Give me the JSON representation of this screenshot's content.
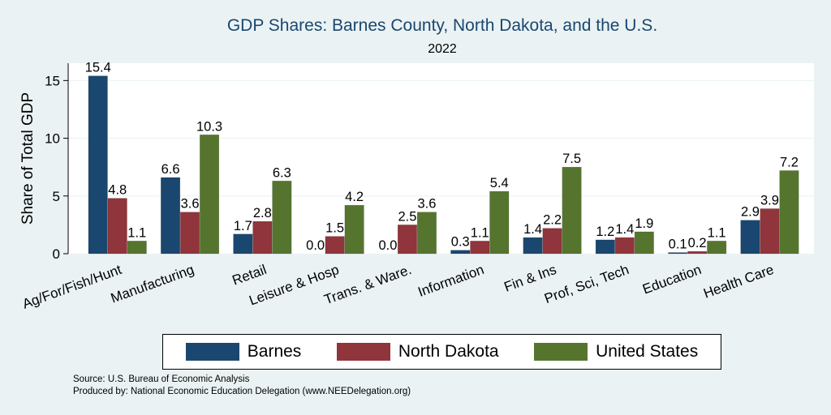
{
  "title": "GDP Shares: Barnes County, North Dakota, and the U.S.",
  "subtitle": "2022",
  "source": "Source: U.S. Bureau of Economic Analysis",
  "produced_by": "Produced by: National Economic Education Delegation (www.NEEDelegation.org)",
  "colors": {
    "barnes": "#1a476f",
    "north_dakota": "#90353b",
    "united_states": "#55752f"
  },
  "chart_data": {
    "type": "bar",
    "title": "GDP Shares: Barnes County, North Dakota, and the U.S.",
    "subtitle": "2022",
    "ylabel": "Share of Total GDP",
    "xlabel": "",
    "ylim": [
      0,
      16.5
    ],
    "yticks": [
      0,
      5,
      10,
      15
    ],
    "grid": true,
    "legend_position": "bottom",
    "categories": [
      "Ag/For/Fish/Hunt",
      "Manufacturing",
      "Retail",
      "Leisure & Hosp",
      "Trans. & Ware.",
      "Information",
      "Fin & Ins",
      "Prof, Sci, Tech",
      "Education",
      "Health Care"
    ],
    "series": [
      {
        "name": "Barnes",
        "values": [
          15.4,
          6.6,
          1.7,
          0.0,
          0.0,
          0.3,
          1.4,
          1.2,
          0.1,
          2.9
        ],
        "labels": [
          "15.4",
          "6.6",
          "1.7",
          "0.0",
          "0.0",
          "0.3",
          "1.4",
          "1.2",
          "0.1",
          "2.9"
        ]
      },
      {
        "name": "North Dakota",
        "values": [
          4.8,
          3.6,
          2.8,
          1.5,
          2.5,
          1.1,
          2.2,
          1.4,
          0.2,
          3.9
        ],
        "labels": [
          "4.8",
          "3.6",
          "2.8",
          "1.5",
          "2.5",
          "1.1",
          "2.2",
          "1.4",
          "0.2",
          "3.9"
        ]
      },
      {
        "name": "United States",
        "values": [
          1.1,
          10.3,
          6.3,
          4.2,
          3.6,
          5.4,
          7.5,
          1.9,
          1.1,
          7.2
        ],
        "labels": [
          "1.1",
          "10.3",
          "6.3",
          "4.2",
          "3.6",
          "5.4",
          "7.5",
          "1.9",
          "1.1",
          "7.2"
        ]
      }
    ]
  }
}
